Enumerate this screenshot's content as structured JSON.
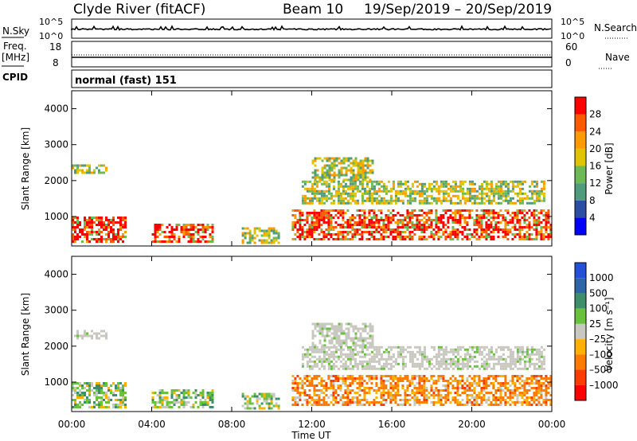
{
  "header": {
    "station": "Clyde River (fitACF)",
    "beam": "Beam 10",
    "dates": "19/Sep/2019 – 20/Sep/2019"
  },
  "panels": {
    "nsky": {
      "label": "N.Sky",
      "left_ticks": [
        "10^5",
        "10^0"
      ],
      "right_ticks": [
        "10^5",
        "10^0"
      ],
      "right_label": "N.Search"
    },
    "freq": {
      "label_line1": "Freq.",
      "label_line2": "[MHz]",
      "left_ticks": [
        "18",
        "8"
      ],
      "right_ticks": [
        "60",
        "0"
      ],
      "right_label": "Nave"
    },
    "cpid": {
      "label": "CPID",
      "value": "normal (fast) 151"
    }
  },
  "chart_data": [
    {
      "type": "heatmap",
      "name": "power",
      "ylabel": "Slant Range [km]",
      "xlabel": "",
      "ylim": [
        180,
        4500
      ],
      "yticks": [
        1000,
        2000,
        3000,
        4000
      ],
      "colorbar_label": "Power [dB]",
      "colorbar_ticks": [
        "4",
        "8",
        "12",
        "16",
        "20",
        "24",
        "28"
      ],
      "colorbar_colors": [
        "#0000ff",
        "#2b4ea3",
        "#4f9b7c",
        "#6db955",
        "#e0c400",
        "#ff9a00",
        "#ff5a00",
        "#ff0000"
      ],
      "regions": [
        {
          "t0": 0.0,
          "t1": 2.7,
          "r0": 300,
          "r1": 1000,
          "level": "high"
        },
        {
          "t0": 0.0,
          "t1": 1.7,
          "r0": 2200,
          "r1": 2450,
          "level": "mid"
        },
        {
          "t0": 4.0,
          "t1": 7.0,
          "r0": 300,
          "r1": 800,
          "level": "high"
        },
        {
          "t0": 8.5,
          "t1": 10.3,
          "r0": 300,
          "r1": 700,
          "level": "mid"
        },
        {
          "t0": 11.0,
          "t1": 24.0,
          "r0": 350,
          "r1": 1200,
          "level": "high"
        },
        {
          "t0": 12.0,
          "t1": 15.0,
          "r0": 2050,
          "r1": 2650,
          "level": "mid"
        },
        {
          "t0": 11.5,
          "t1": 23.6,
          "r0": 1400,
          "r1": 2000,
          "level": "mid"
        }
      ]
    },
    {
      "type": "heatmap",
      "name": "velocity",
      "ylabel": "Slant Range [km]",
      "xlabel": "Time UT",
      "ylim": [
        180,
        4500
      ],
      "yticks": [
        1000,
        2000,
        3000,
        4000
      ],
      "xticks": [
        "00:00",
        "04:00",
        "08:00",
        "12:00",
        "16:00",
        "20:00",
        "00:00"
      ],
      "colorbar_label": "Velocity [m s⁻¹]",
      "colorbar_ticks": [
        "1000",
        "500",
        "100",
        "25",
        "–25",
        "–100",
        "–500",
        "–1000"
      ],
      "colorbar_colors": [
        "#2450d8",
        "#2c66a6",
        "#3c8f6a",
        "#68c23c",
        "#c8c8c0",
        "#ffb000",
        "#ff7a00",
        "#ff3c00",
        "#ff0000"
      ],
      "regions": [
        {
          "t0": 0.0,
          "t1": 2.7,
          "r0": 300,
          "r1": 1000,
          "level": "slow"
        },
        {
          "t0": 0.0,
          "t1": 1.7,
          "r0": 2200,
          "r1": 2450,
          "level": "zero"
        },
        {
          "t0": 4.0,
          "t1": 7.0,
          "r0": 300,
          "r1": 800,
          "level": "slow"
        },
        {
          "t0": 8.5,
          "t1": 10.3,
          "r0": 300,
          "r1": 700,
          "level": "slow"
        },
        {
          "t0": 11.0,
          "t1": 24.0,
          "r0": 350,
          "r1": 1200,
          "level": "away"
        },
        {
          "t0": 12.0,
          "t1": 15.0,
          "r0": 2050,
          "r1": 2650,
          "level": "zero"
        },
        {
          "t0": 11.5,
          "t1": 23.6,
          "r0": 1400,
          "r1": 2000,
          "level": "zero"
        }
      ]
    }
  ]
}
